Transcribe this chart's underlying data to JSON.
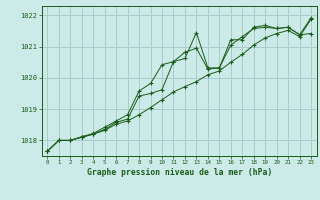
{
  "background_color": "#cceae8",
  "grid_color": "#aacccc",
  "line_color": "#1a5c1a",
  "title": "Graphe pression niveau de la mer (hPa)",
  "hours": [
    0,
    1,
    2,
    3,
    4,
    5,
    6,
    7,
    8,
    9,
    10,
    11,
    12,
    13,
    14,
    15,
    16,
    17,
    18,
    19,
    20,
    21,
    22,
    23
  ],
  "ylim": [
    1017.5,
    1022.3
  ],
  "yticks": [
    1018,
    1019,
    1020,
    1021,
    1022
  ],
  "series": [
    [
      1017.65,
      1018.0,
      1018.0,
      1018.1,
      1018.2,
      1018.32,
      1018.52,
      1018.62,
      1018.82,
      1019.05,
      1019.3,
      1019.55,
      1019.72,
      1019.88,
      1020.1,
      1020.22,
      1020.5,
      1020.75,
      1021.05,
      1021.28,
      1021.42,
      1021.52,
      1021.32,
      1021.88
    ],
    [
      1017.65,
      1018.0,
      1018.0,
      1018.1,
      1018.2,
      1018.35,
      1018.58,
      1018.68,
      1019.42,
      1019.5,
      1019.62,
      1020.52,
      1020.82,
      1020.95,
      1020.28,
      1020.32,
      1021.05,
      1021.32,
      1021.58,
      1021.62,
      1021.58,
      1021.62,
      1021.38,
      1021.42
    ],
    [
      1017.65,
      1018.0,
      1018.0,
      1018.12,
      1018.22,
      1018.42,
      1018.62,
      1018.82,
      1019.58,
      1019.82,
      1020.42,
      1020.52,
      1020.62,
      1021.45,
      1020.32,
      1020.32,
      1021.22,
      1021.22,
      1021.62,
      1021.68,
      1021.58,
      1021.62,
      1021.38,
      1021.92
    ]
  ]
}
